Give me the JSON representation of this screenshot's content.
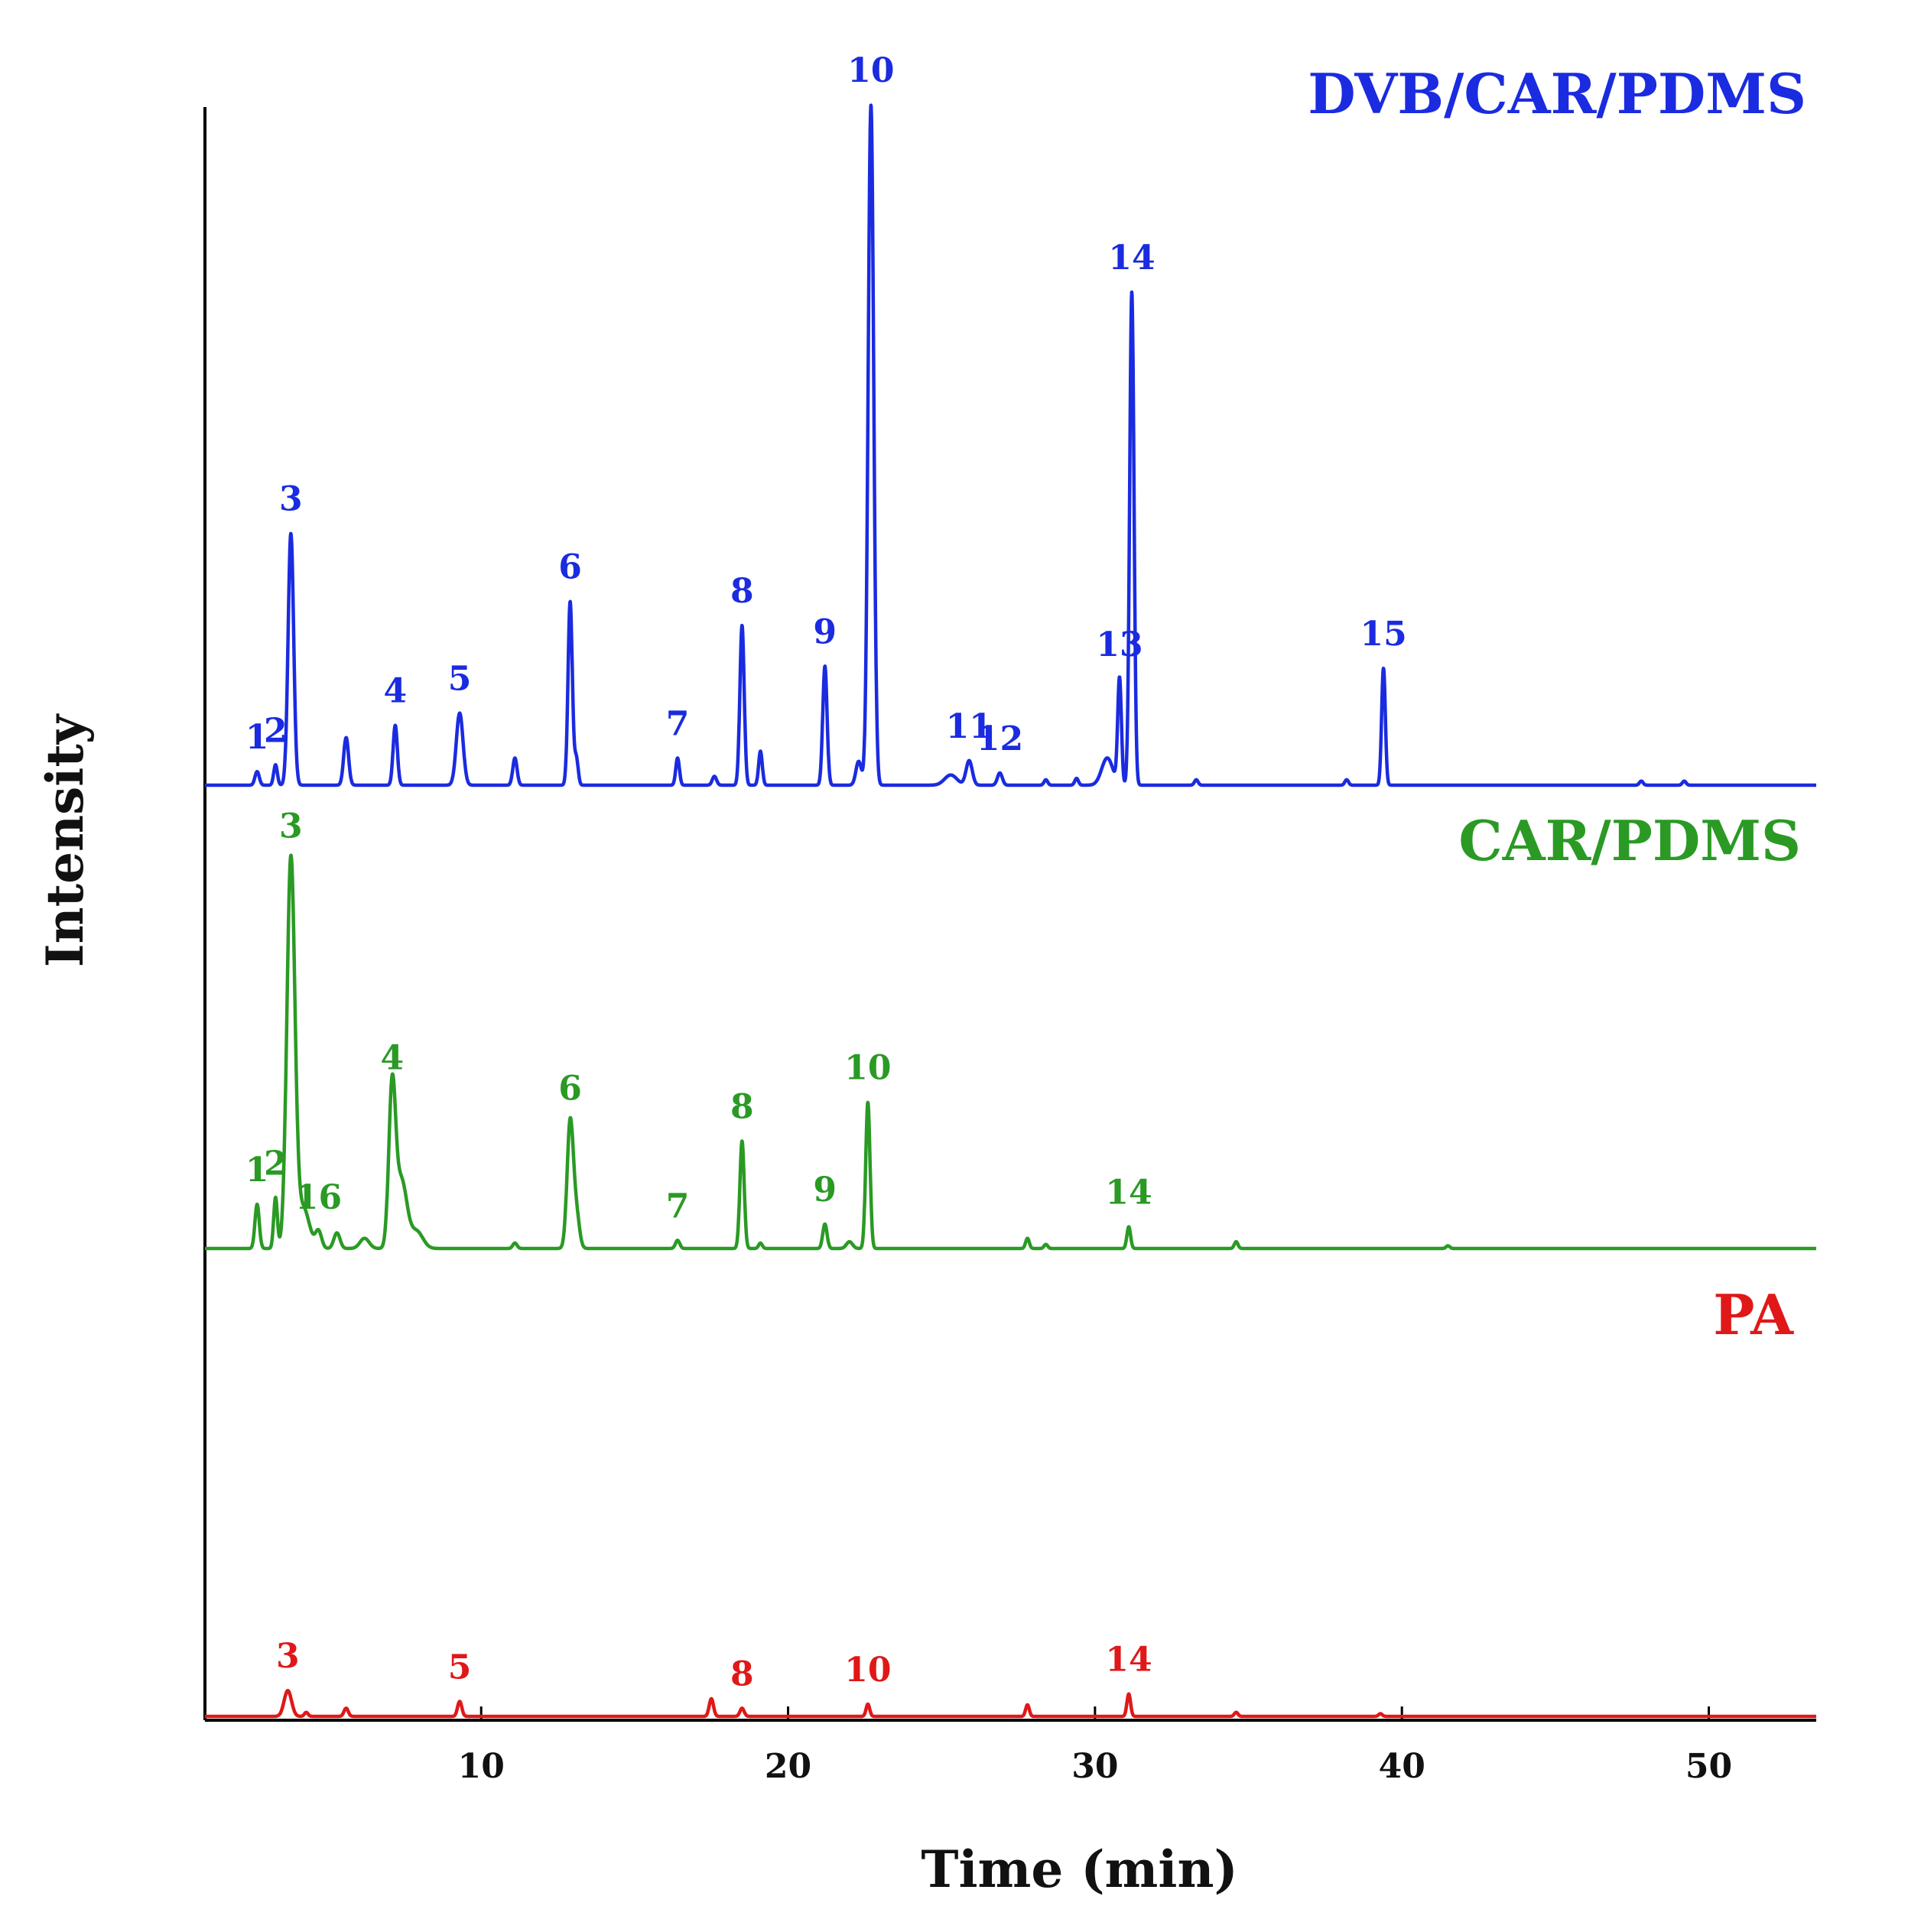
{
  "chart_data": {
    "type": "line",
    "title": "",
    "xlabel": "Time (min)",
    "ylabel": "Intensity",
    "xlim": [
      1,
      53.5
    ],
    "xticks": [
      10,
      20,
      30,
      40,
      50
    ],
    "y_units": "relative intensity (0-100, offset stack)",
    "grid": false,
    "legend": "series names printed at top-right of each trace",
    "series": [
      {
        "name": "DVB/CAR/PDMS",
        "color": "#1a2be0",
        "scale": 1.0,
        "peaks": [
          {
            "t": 2.7,
            "h": 2.0,
            "w": 0.07,
            "label": "1"
          },
          {
            "t": 3.3,
            "h": 3.0,
            "w": 0.06,
            "label": "2"
          },
          {
            "t": 3.8,
            "h": 37.0,
            "w": 0.09,
            "label": "3"
          },
          {
            "t": 5.6,
            "h": 7.0,
            "w": 0.08
          },
          {
            "t": 7.2,
            "h": 8.8,
            "w": 0.07,
            "label": "4"
          },
          {
            "t": 9.3,
            "h": 10.6,
            "w": 0.11,
            "label": "5"
          },
          {
            "t": 11.1,
            "h": 4.0,
            "w": 0.07
          },
          {
            "t": 12.9,
            "h": 27.0,
            "w": 0.07,
            "label": "6"
          },
          {
            "t": 13.1,
            "h": 4.0,
            "w": 0.06
          },
          {
            "t": 16.4,
            "h": 4.0,
            "w": 0.06,
            "label": "7"
          },
          {
            "t": 17.6,
            "h": 1.3,
            "w": 0.07
          },
          {
            "t": 18.5,
            "h": 23.5,
            "w": 0.07,
            "label": "8"
          },
          {
            "t": 19.1,
            "h": 5.0,
            "w": 0.06
          },
          {
            "t": 21.2,
            "h": 17.5,
            "w": 0.07,
            "label": "9"
          },
          {
            "t": 22.3,
            "h": 3.5,
            "w": 0.09
          },
          {
            "t": 22.7,
            "h": 100.0,
            "w": 0.09,
            "label": "10"
          },
          {
            "t": 25.3,
            "h": 1.5,
            "w": 0.2
          },
          {
            "t": 25.9,
            "h": 3.6,
            "w": 0.1,
            "label": "11"
          },
          {
            "t": 26.9,
            "h": 1.8,
            "w": 0.08,
            "label": "12"
          },
          {
            "t": 28.4,
            "h": 0.8,
            "w": 0.06
          },
          {
            "t": 29.4,
            "h": 1.0,
            "w": 0.06
          },
          {
            "t": 30.4,
            "h": 4.0,
            "w": 0.18
          },
          {
            "t": 30.8,
            "h": 15.6,
            "w": 0.06,
            "label": "13"
          },
          {
            "t": 31.2,
            "h": 72.5,
            "w": 0.07,
            "label": "14"
          },
          {
            "t": 33.3,
            "h": 0.8,
            "w": 0.06
          },
          {
            "t": 38.2,
            "h": 0.8,
            "w": 0.06
          },
          {
            "t": 39.4,
            "h": 17.2,
            "w": 0.06,
            "label": "15"
          },
          {
            "t": 47.8,
            "h": 0.6,
            "w": 0.06
          },
          {
            "t": 49.2,
            "h": 0.6,
            "w": 0.06
          }
        ]
      },
      {
        "name": "CAR/PDMS",
        "color": "#2a9a24",
        "scale": 1.0,
        "peaks": [
          {
            "t": 2.7,
            "h": 6.5,
            "w": 0.07,
            "label": "1"
          },
          {
            "t": 3.3,
            "h": 7.5,
            "w": 0.06,
            "label": "2"
          },
          {
            "t": 3.8,
            "h": 57.0,
            "w": 0.13,
            "label": "3"
          },
          {
            "t": 4.2,
            "h": 6.0,
            "w": 0.2
          },
          {
            "t": 4.7,
            "h": 2.5,
            "w": 0.1,
            "label": "16"
          },
          {
            "t": 5.3,
            "h": 2.3,
            "w": 0.1
          },
          {
            "t": 6.2,
            "h": 1.5,
            "w": 0.15
          },
          {
            "t": 7.1,
            "h": 23.0,
            "w": 0.11,
            "label": "4"
          },
          {
            "t": 7.4,
            "h": 10.0,
            "w": 0.18
          },
          {
            "t": 7.9,
            "h": 2.5,
            "w": 0.2
          },
          {
            "t": 11.1,
            "h": 0.8,
            "w": 0.07
          },
          {
            "t": 12.9,
            "h": 18.5,
            "w": 0.1,
            "label": "6"
          },
          {
            "t": 13.1,
            "h": 5.0,
            "w": 0.1
          },
          {
            "t": 16.4,
            "h": 1.2,
            "w": 0.07,
            "label": "7"
          },
          {
            "t": 18.5,
            "h": 15.8,
            "w": 0.07,
            "label": "8"
          },
          {
            "t": 19.1,
            "h": 0.8,
            "w": 0.06
          },
          {
            "t": 21.2,
            "h": 3.6,
            "w": 0.07,
            "label": "9"
          },
          {
            "t": 22.0,
            "h": 1.0,
            "w": 0.1
          },
          {
            "t": 22.6,
            "h": 21.5,
            "w": 0.07,
            "label": "10"
          },
          {
            "t": 27.8,
            "h": 1.5,
            "w": 0.06
          },
          {
            "t": 28.4,
            "h": 0.6,
            "w": 0.06
          },
          {
            "t": 31.1,
            "h": 3.2,
            "w": 0.06,
            "label": "14"
          },
          {
            "t": 34.6,
            "h": 1.0,
            "w": 0.06
          },
          {
            "t": 41.5,
            "h": 0.4,
            "w": 0.06
          }
        ]
      },
      {
        "name": "PA",
        "color": "#e01818",
        "scale": 1.0,
        "peaks": [
          {
            "t": 3.7,
            "h": 3.8,
            "w": 0.12,
            "label": "3"
          },
          {
            "t": 4.3,
            "h": 0.6,
            "w": 0.06
          },
          {
            "t": 5.6,
            "h": 1.2,
            "w": 0.07
          },
          {
            "t": 9.3,
            "h": 2.2,
            "w": 0.07,
            "label": "5"
          },
          {
            "t": 17.5,
            "h": 2.6,
            "w": 0.07
          },
          {
            "t": 18.5,
            "h": 1.2,
            "w": 0.07,
            "label": "8"
          },
          {
            "t": 22.6,
            "h": 1.8,
            "w": 0.06,
            "label": "10"
          },
          {
            "t": 27.8,
            "h": 1.7,
            "w": 0.06
          },
          {
            "t": 31.1,
            "h": 3.3,
            "w": 0.06,
            "label": "14"
          },
          {
            "t": 34.6,
            "h": 0.6,
            "w": 0.06
          },
          {
            "t": 39.3,
            "h": 0.4,
            "w": 0.06
          }
        ]
      }
    ]
  }
}
